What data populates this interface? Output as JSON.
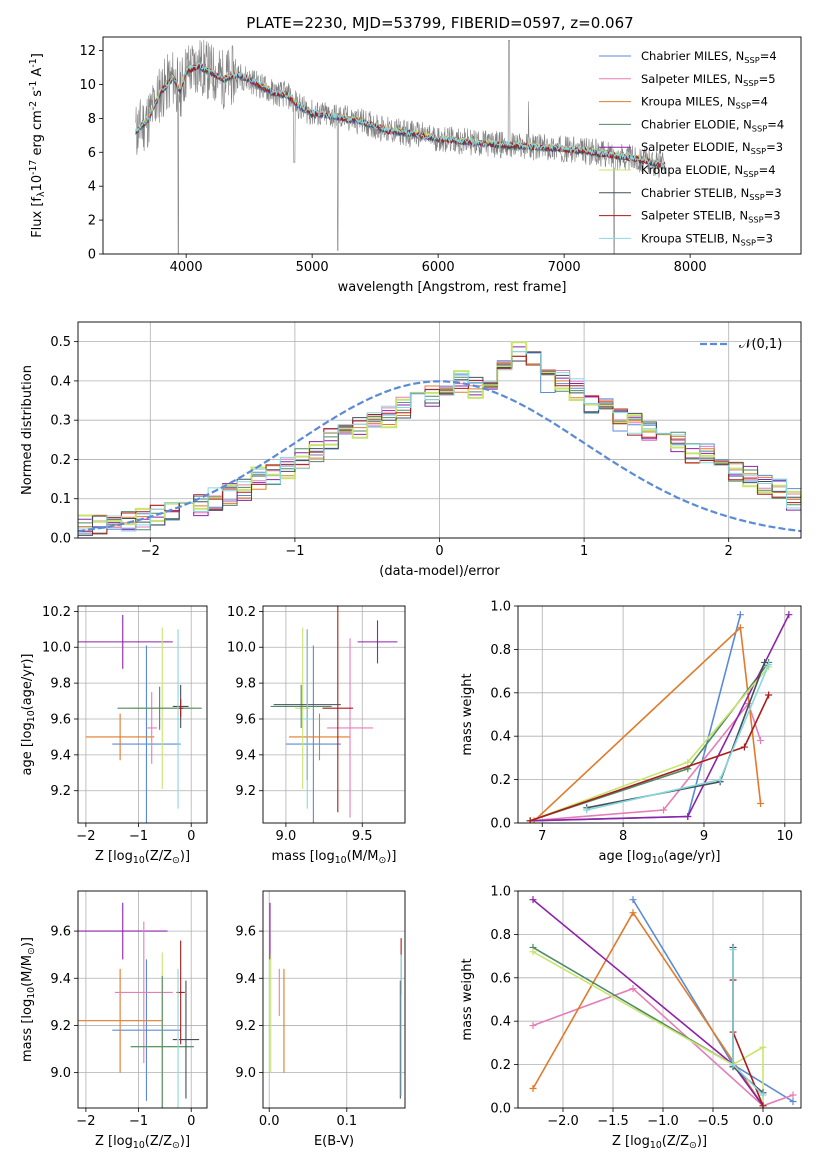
{
  "figure_title": "PLATE=2230, MJD=53799, FIBERID=0597, z=0.067",
  "chart_data": [
    {
      "id": "spectrum",
      "type": "line",
      "title": "PLATE=2230, MJD=53799, FIBERID=0597, z=0.067",
      "xlabel": "wavelength [Angstrom, rest frame]",
      "ylabel": "Flux [f$_\\lambda$10$^{-17}$ erg cm$^{-2}$ s$^{-1}$ A$^{-1}$]",
      "xlim": [
        3340,
        8880
      ],
      "ylim": [
        0,
        12.8
      ],
      "xticks": [
        4000,
        5000,
        6000,
        7000,
        8000
      ],
      "yticks": [
        0,
        2,
        4,
        6,
        8,
        10,
        12
      ],
      "grid": false,
      "legend": "top-right",
      "data_color": "#808080",
      "series": [
        {
          "name": "Chabrier MILES, N$_{SSP}$=4",
          "color": "#5b8bd6"
        },
        {
          "name": "Salpeter MILES, N$_{SSP}$=5",
          "color": "#e57eb8"
        },
        {
          "name": "Kroupa MILES, N$_{SSP}$=4",
          "color": "#e07b2b"
        },
        {
          "name": "Chabrier ELODIE, N$_{SSP}$=4",
          "color": "#4e8a66"
        },
        {
          "name": "Salpeter ELODIE, N$_{SSP}$=3",
          "color": "#8e22a8"
        },
        {
          "name": "Kroupa ELODIE, N$_{SSP}$=4",
          "color": "#c9e46e"
        },
        {
          "name": "Chabrier STELIB, N$_{SSP}$=3",
          "color": "#45505c"
        },
        {
          "name": "Salpeter STELIB, N$_{SSP}$=3",
          "color": "#a81c1c"
        },
        {
          "name": "Kroupa STELIB, N$_{SSP}$=3",
          "color": "#88d8e0"
        }
      ],
      "model_continuum": {
        "x": [
          3600,
          3700,
          3800,
          3900,
          3950,
          4000,
          4100,
          4200,
          4300,
          4400,
          4500,
          4600,
          4700,
          4800,
          4900,
          5000,
          5200,
          5400,
          5600,
          5800,
          6000,
          6200,
          6400,
          6600,
          6800,
          7000,
          7200,
          7400,
          7600,
          7800
        ],
        "y": [
          7.2,
          8.0,
          9.6,
          10.4,
          9.6,
          10.8,
          11.1,
          10.7,
          10.3,
          10.6,
          10.3,
          9.9,
          9.5,
          9.4,
          8.7,
          8.3,
          8.1,
          7.8,
          7.3,
          7.1,
          6.8,
          6.65,
          6.5,
          6.4,
          6.3,
          6.2,
          6.05,
          5.8,
          5.6,
          5.2
        ]
      }
    },
    {
      "id": "residuals",
      "type": "line",
      "xlabel": "(data-model)/error",
      "ylabel": "Normed distribution",
      "xlim": [
        -2.5,
        2.5
      ],
      "ylim": [
        0,
        0.55
      ],
      "xticks": [
        -2,
        -1,
        0,
        1,
        2
      ],
      "yticks": [
        0.0,
        0.1,
        0.2,
        0.3,
        0.4,
        0.5
      ],
      "grid": true,
      "legend": "top-right",
      "gaussian_label": "$\\mathcal{N}(0,1)$",
      "gaussian_color": "#5b8bd6",
      "bin_width": 0.1,
      "hist_reference": [
        0.03,
        0.03,
        0.04,
        0.04,
        0.05,
        0.06,
        0.07,
        0.09,
        0.08,
        0.1,
        0.11,
        0.12,
        0.15,
        0.16,
        0.18,
        0.2,
        0.22,
        0.25,
        0.26,
        0.28,
        0.29,
        0.31,
        0.33,
        0.35,
        0.36,
        0.37,
        0.4,
        0.38,
        0.39,
        0.44,
        0.48,
        0.46,
        0.4,
        0.4,
        0.38,
        0.34,
        0.33,
        0.3,
        0.29,
        0.27,
        0.25,
        0.24,
        0.22,
        0.21,
        0.2,
        0.17,
        0.16,
        0.13,
        0.13,
        0.1,
        0.09,
        0.08,
        0.07,
        0.07,
        0.06,
        0.05,
        0.05,
        0.04,
        0.04,
        0.03,
        0.03,
        0.03,
        0.03,
        0.03,
        0.03,
        0.03,
        0.03,
        0.03,
        0.03,
        0.03,
        0.03,
        0.03,
        0.03,
        0.03,
        0.03
      ]
    },
    {
      "id": "age_vs_Z",
      "type": "scatter",
      "xlabel": "Z [log$_{10}$($Z/Z_\\odot$)]",
      "ylabel": "age  [log$_{10}$($age/yr$)]",
      "xlim": [
        -2.15,
        0.3
      ],
      "ylim": [
        9.02,
        10.23
      ],
      "xticks": [
        -2,
        -1,
        0
      ],
      "yticks": [
        9.2,
        9.4,
        9.6,
        9.8,
        10.0,
        10.2
      ],
      "grid": true,
      "points": [
        {
          "color": "#8e22a8",
          "x": -1.3,
          "xerr": 0.95,
          "y": 10.03,
          "yerr": 0.15
        },
        {
          "color": "#5b8bd6",
          "x": -0.85,
          "xerr": 0.65,
          "y": 9.46,
          "yerr": 0.55
        },
        {
          "color": "#e07b2b",
          "x": -1.35,
          "xerr": 0.65,
          "y": 9.5,
          "yerr": 0.13
        },
        {
          "color": "#e57eb8",
          "x": -0.75,
          "xerr": 0.1,
          "y": 9.55,
          "yerr": 0.2
        },
        {
          "color": "#c9e46e",
          "x": -0.55,
          "xerr": 0.6,
          "y": 9.66,
          "yerr": 0.45
        },
        {
          "color": "#4e8a66",
          "x": -0.6,
          "xerr": 0.8,
          "y": 9.66,
          "yerr": 0.12
        },
        {
          "color": "#45505c",
          "x": -0.2,
          "xerr": 0.15,
          "y": 9.67,
          "yerr": 0.12
        },
        {
          "color": "#a81c1c",
          "x": -0.2,
          "xerr": 0.05,
          "y": 9.66,
          "yerr": 0.05
        },
        {
          "color": "#88d8e0",
          "x": -0.25,
          "xerr": 0.02,
          "y": 9.6,
          "yerr": 0.5
        }
      ]
    },
    {
      "id": "age_vs_mass",
      "type": "scatter",
      "xlabel": "mass [log$_{10}$($M/M_\\odot$)]",
      "ylabel": "",
      "xlim": [
        8.85,
        9.78
      ],
      "ylim": [
        9.02,
        10.23
      ],
      "xticks": [
        9.0,
        9.5
      ],
      "yticks": [
        9.2,
        9.4,
        9.6,
        9.8,
        10.0,
        10.2
      ],
      "grid": true,
      "points": [
        {
          "color": "#8e22a8",
          "x": 9.6,
          "xerr": 0.13,
          "y": 10.03,
          "yerr": 0.12
        },
        {
          "color": "#5b8bd6",
          "x": 9.18,
          "xerr": 0.18,
          "y": 9.46,
          "yerr": 0.55
        },
        {
          "color": "#e07b2b",
          "x": 9.22,
          "xerr": 0.2,
          "y": 9.5,
          "yerr": 0.13
        },
        {
          "color": "#e57eb8",
          "x": 9.42,
          "xerr": 0.15,
          "y": 9.55,
          "yerr": 0.5
        },
        {
          "color": "#c9e46e",
          "x": 9.11,
          "xerr": 0.05,
          "y": 9.66,
          "yerr": 0.45
        },
        {
          "color": "#4e8a66",
          "x": 9.1,
          "xerr": 0.2,
          "y": 9.67,
          "yerr": 0.12
        },
        {
          "color": "#45505c",
          "x": 9.14,
          "xerr": 0.22,
          "y": 9.68,
          "yerr": 0.42
        },
        {
          "color": "#a81c1c",
          "x": 9.34,
          "xerr": 0.1,
          "y": 9.66,
          "yerr": 0.58
        },
        {
          "color": "#88d8e0",
          "x": 9.14,
          "xerr": 0.03,
          "y": 9.6,
          "yerr": 0.5
        }
      ]
    },
    {
      "id": "weight_vs_age",
      "type": "line",
      "xlabel": "age  [log$_{10}$($age/yr$)]",
      "ylabel": "mass weight",
      "xlim": [
        6.7,
        10.2
      ],
      "ylim": [
        0,
        1
      ],
      "xticks": [
        7,
        8,
        9,
        10
      ],
      "yticks": [
        0.0,
        0.2,
        0.4,
        0.6,
        0.8,
        1.0
      ],
      "grid": true,
      "series": [
        {
          "color": "#5b8bd6",
          "x": [
            6.85,
            8.8,
            9.45
          ],
          "y": [
            0.01,
            0.03,
            0.96
          ]
        },
        {
          "color": "#e57eb8",
          "x": [
            6.85,
            8.5,
            9.55,
            9.7
          ],
          "y": [
            0.01,
            0.06,
            0.55,
            0.38
          ]
        },
        {
          "color": "#e07b2b",
          "x": [
            6.9,
            9.45,
            9.7
          ],
          "y": [
            0.01,
            0.9,
            0.09
          ]
        },
        {
          "color": "#4e8a66",
          "x": [
            6.85,
            8.8,
            9.8
          ],
          "y": [
            0.01,
            0.25,
            0.74
          ]
        },
        {
          "color": "#8e22a8",
          "x": [
            6.85,
            8.8,
            10.05
          ],
          "y": [
            0.01,
            0.03,
            0.96
          ]
        },
        {
          "color": "#c9e46e",
          "x": [
            6.85,
            8.8,
            9.8
          ],
          "y": [
            0.01,
            0.28,
            0.72
          ]
        },
        {
          "color": "#45505c",
          "x": [
            7.55,
            9.2,
            9.75
          ],
          "y": [
            0.07,
            0.19,
            0.74
          ]
        },
        {
          "color": "#a81c1c",
          "x": [
            6.85,
            9.5,
            9.8
          ],
          "y": [
            0.01,
            0.35,
            0.59
          ]
        },
        {
          "color": "#88d8e0",
          "x": [
            7.55,
            9.2,
            9.8
          ],
          "y": [
            0.06,
            0.2,
            0.73
          ]
        }
      ]
    },
    {
      "id": "mass_vs_Z",
      "type": "scatter",
      "xlabel": "Z [log$_{10}$($Z/Z_\\odot$)]",
      "ylabel": "mass [log$_{10}$($M/M_\\odot$)]",
      "xlim": [
        -2.15,
        0.3
      ],
      "ylim": [
        8.85,
        9.77
      ],
      "xticks": [
        -2,
        -1,
        0
      ],
      "yticks": [
        9.0,
        9.2,
        9.4,
        9.6
      ],
      "grid": true,
      "points": [
        {
          "color": "#8e22a8",
          "x": -1.3,
          "xerr": 0.85,
          "y": 9.6,
          "yerr": 0.12
        },
        {
          "color": "#5b8bd6",
          "x": -0.85,
          "xerr": 0.65,
          "y": 9.18,
          "yerr": 0.3
        },
        {
          "color": "#e07b2b",
          "x": -1.35,
          "xerr": 0.8,
          "y": 9.22,
          "yerr": 0.22
        },
        {
          "color": "#e57eb8",
          "x": -0.9,
          "xerr": 0.55,
          "y": 9.34,
          "yerr": 0.3
        },
        {
          "color": "#c9e46e",
          "x": -0.55,
          "xerr": 0.6,
          "y": 9.11,
          "yerr": 0.4
        },
        {
          "color": "#4e8a66",
          "x": -0.55,
          "xerr": 0.6,
          "y": 9.11,
          "yerr": 0.3
        },
        {
          "color": "#45505c",
          "x": -0.1,
          "xerr": 0.25,
          "y": 9.14,
          "yerr": 0.25
        },
        {
          "color": "#a81c1c",
          "x": -0.2,
          "xerr": 0.08,
          "y": 9.34,
          "yerr": 0.22
        },
        {
          "color": "#88d8e0",
          "x": -0.25,
          "xerr": 0.02,
          "y": 9.14,
          "yerr": 0.3
        }
      ]
    },
    {
      "id": "mass_vs_ebv",
      "type": "scatter",
      "xlabel": "E(B-V)",
      "ylabel": "",
      "xlim": [
        -0.008,
        0.175
      ],
      "ylim": [
        8.85,
        9.77
      ],
      "xticks": [
        0.0,
        0.1
      ],
      "yticks": [
        9.0,
        9.2,
        9.4,
        9.6
      ],
      "grid": true,
      "points": [
        {
          "color": "#8e22a8",
          "x": 0.001,
          "xerr": 0,
          "y": 9.6,
          "yerr": 0.12
        },
        {
          "color": "#c9e46e",
          "x": 0.002,
          "xerr": 0,
          "y": 9.25,
          "yerr": 0.25
        },
        {
          "color": "#e57eb8",
          "x": 0.013,
          "xerr": 0,
          "y": 9.34,
          "yerr": 0.1
        },
        {
          "color": "#e07b2b",
          "x": 0.019,
          "xerr": 0,
          "y": 9.22,
          "yerr": 0.22
        },
        {
          "color": "#a81c1c",
          "x": 0.17,
          "xerr": 0,
          "y": 9.45,
          "yerr": 0.12
        },
        {
          "color": "#45505c",
          "x": 0.169,
          "xerr": 0,
          "y": 9.14,
          "yerr": 0.25
        },
        {
          "color": "#88d8e0",
          "x": 0.17,
          "xerr": 0,
          "y": 9.2,
          "yerr": 0.3
        }
      ]
    },
    {
      "id": "weight_vs_Z",
      "type": "line",
      "xlabel": "Z [log$_{10}$($Z/Z_\\odot$)]",
      "ylabel": "mass weight",
      "xlim": [
        -2.45,
        0.38
      ],
      "ylim": [
        0,
        1
      ],
      "xticks": [
        -2.0,
        -1.5,
        -1.0,
        -0.5,
        0.0
      ],
      "yticks": [
        0.0,
        0.2,
        0.4,
        0.6,
        0.8,
        1.0
      ],
      "grid": true,
      "series": [
        {
          "color": "#5b8bd6",
          "x": [
            -1.3,
            -0.3,
            0.3
          ],
          "y": [
            0.96,
            0.2,
            0.03
          ]
        },
        {
          "color": "#e57eb8",
          "x": [
            -2.3,
            -1.3,
            0.0,
            0.3
          ],
          "y": [
            0.38,
            0.55,
            0.01,
            0.06
          ]
        },
        {
          "color": "#e07b2b",
          "x": [
            -2.3,
            -1.3,
            0.0
          ],
          "y": [
            0.09,
            0.9,
            0.01
          ]
        },
        {
          "color": "#4e8a66",
          "x": [
            -2.3,
            -0.3,
            0.0
          ],
          "y": [
            0.74,
            0.2,
            0.01
          ]
        },
        {
          "color": "#8e22a8",
          "x": [
            -2.3,
            -0.3,
            0.0
          ],
          "y": [
            0.96,
            0.2,
            0.01
          ]
        },
        {
          "color": "#c9e46e",
          "x": [
            -2.3,
            -0.3,
            0.0,
            0.0
          ],
          "y": [
            0.72,
            0.2,
            0.28,
            0.01
          ]
        },
        {
          "color": "#45505c",
          "x": [
            -0.3,
            -0.3,
            0.0
          ],
          "y": [
            0.74,
            0.19,
            0.07
          ]
        },
        {
          "color": "#a81c1c",
          "x": [
            -0.3,
            -0.3,
            0.0
          ],
          "y": [
            0.59,
            0.35,
            0.01
          ]
        },
        {
          "color": "#88d8e0",
          "x": [
            -0.3,
            -0.3,
            0.0
          ],
          "y": [
            0.73,
            0.2,
            0.06
          ]
        }
      ]
    }
  ]
}
